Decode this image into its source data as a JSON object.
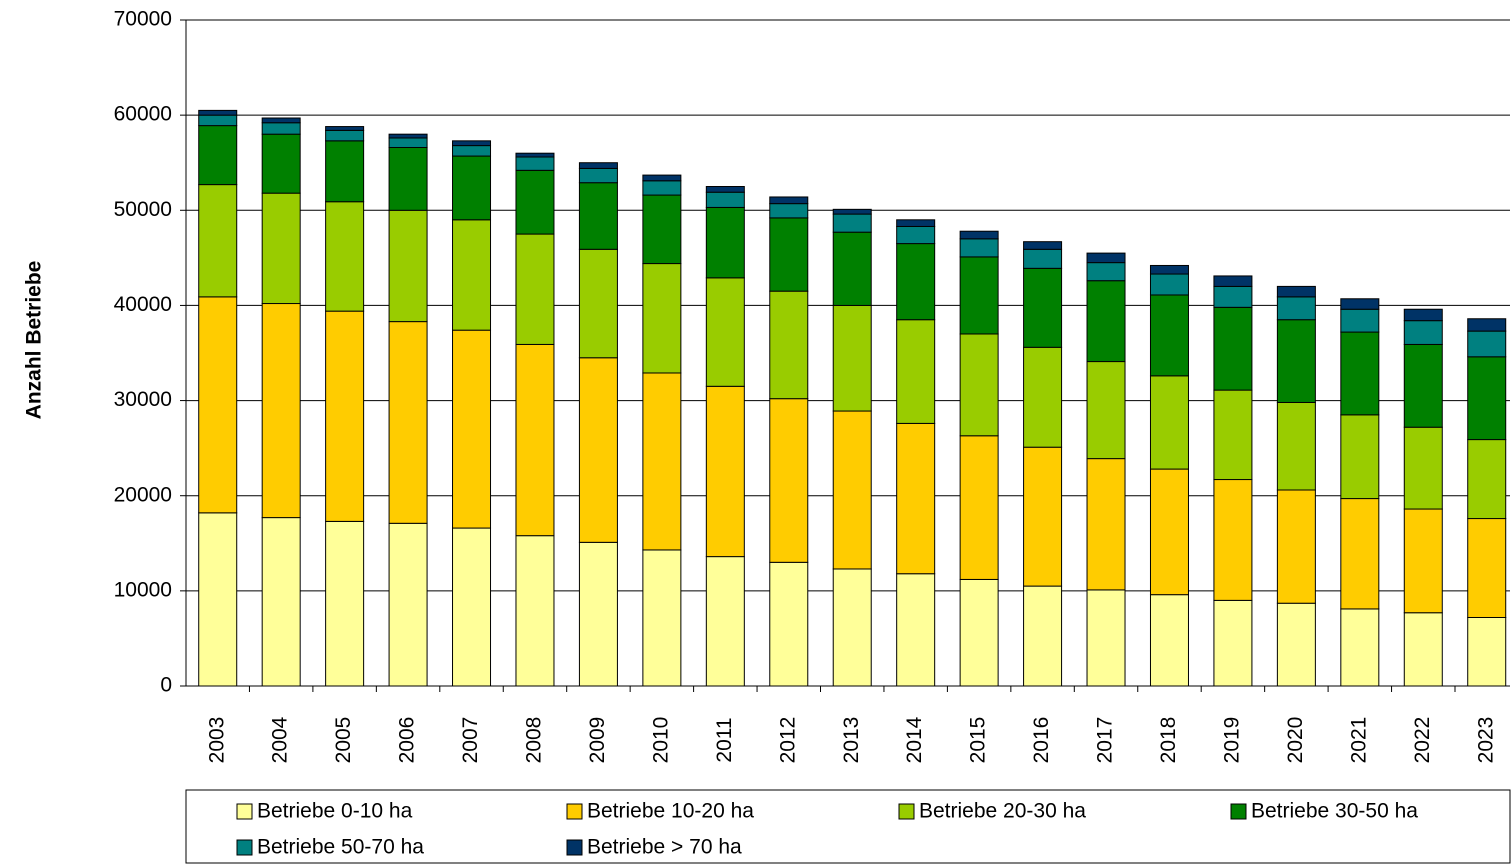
{
  "chart_data": {
    "type": "stacked-bar",
    "y_label": "Anzahl Betriebe",
    "categories": [
      "2003",
      "2004",
      "2005",
      "2006",
      "2007",
      "2008",
      "2009",
      "2010",
      "2011",
      "2012",
      "2013",
      "2014",
      "2015",
      "2016",
      "2017",
      "2018",
      "2019",
      "2020",
      "2021",
      "2022",
      "2023"
    ],
    "series": [
      {
        "name": "Betriebe 0-10 ha",
        "color": "#ffff99",
        "values": [
          18200,
          17700,
          17300,
          17100,
          16600,
          15800,
          15100,
          14300,
          13600,
          13000,
          12300,
          11800,
          11200,
          10500,
          10100,
          9600,
          9000,
          8700,
          8100,
          7700,
          7200
        ]
      },
      {
        "name": "Betriebe 10-20 ha",
        "color": "#ffcc00",
        "values": [
          22700,
          22500,
          22100,
          21200,
          20800,
          20100,
          19400,
          18600,
          17900,
          17200,
          16600,
          15800,
          15100,
          14600,
          13800,
          13200,
          12700,
          11900,
          11600,
          10900,
          10400
        ]
      },
      {
        "name": "Betriebe 20-30 ha",
        "color": "#99cc00",
        "values": [
          11800,
          11600,
          11500,
          11700,
          11600,
          11600,
          11400,
          11500,
          11400,
          11300,
          11100,
          10900,
          10700,
          10500,
          10200,
          9800,
          9400,
          9200,
          8800,
          8600,
          8300
        ]
      },
      {
        "name": "Betriebe 30-50 ha",
        "color": "#008000",
        "values": [
          6200,
          6200,
          6400,
          6600,
          6700,
          6700,
          7000,
          7200,
          7400,
          7700,
          7700,
          8000,
          8100,
          8300,
          8500,
          8500,
          8700,
          8700,
          8700,
          8700,
          8700
        ]
      },
      {
        "name": "Betriebe 50-70 ha",
        "color": "#008080",
        "values": [
          1100,
          1200,
          1100,
          1000,
          1100,
          1400,
          1500,
          1500,
          1600,
          1500,
          1900,
          1800,
          1900,
          2000,
          1900,
          2200,
          2200,
          2400,
          2400,
          2500,
          2700
        ]
      },
      {
        "name": "Betriebe > 70 ha",
        "color": "#003366",
        "values": [
          500,
          500,
          400,
          400,
          500,
          400,
          600,
          600,
          600,
          700,
          500,
          700,
          800,
          800,
          1000,
          900,
          1100,
          1100,
          1100,
          1200,
          1300
        ]
      }
    ],
    "ylim": [
      0,
      70000
    ],
    "yticks": [
      0,
      10000,
      20000,
      30000,
      40000,
      50000,
      60000,
      70000
    ],
    "grid": true
  }
}
